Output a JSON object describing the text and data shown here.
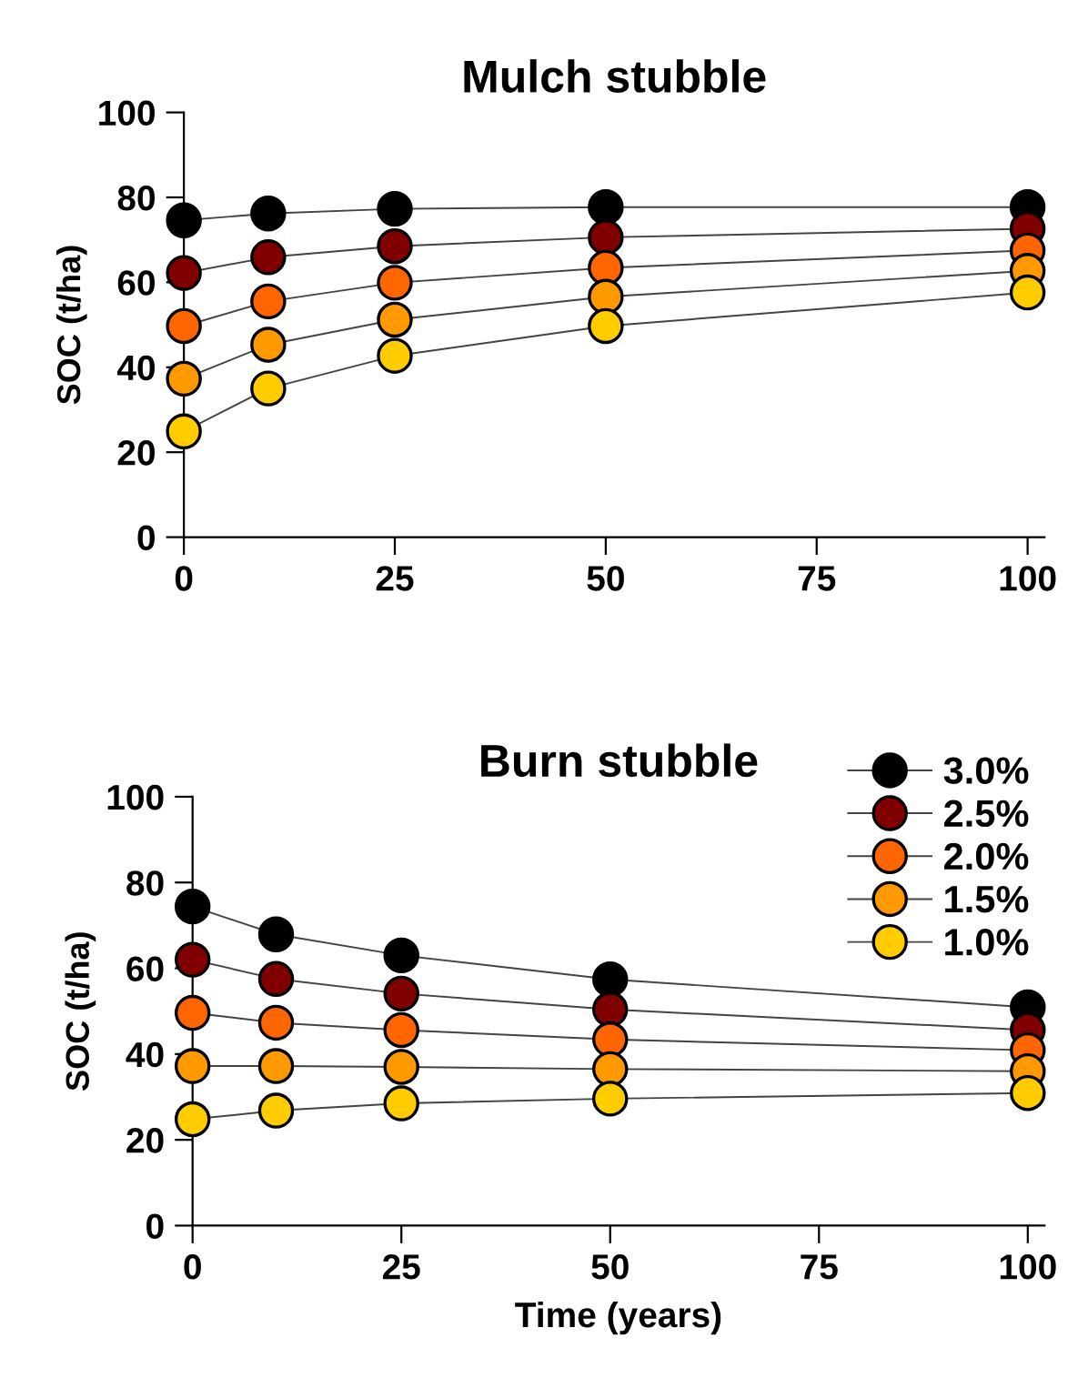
{
  "chart_data": [
    {
      "type": "line",
      "title": "Mulch stubble",
      "ylabel": "SOC (t/ha)",
      "x": [
        0,
        10,
        25,
        50,
        100
      ],
      "xlim": [
        0,
        102
      ],
      "ylim": [
        0,
        100
      ],
      "xticks": [
        0,
        25,
        50,
        75,
        100
      ],
      "yticks": [
        0,
        20,
        40,
        60,
        80,
        100
      ],
      "marker": "circle",
      "line_style": "solid",
      "grid": false,
      "legend": false,
      "series": [
        {
          "color": "#000000",
          "values": [
            74.6,
            76.2,
            77.3,
            77.7,
            77.7
          ]
        },
        {
          "color": "#800000",
          "values": [
            62.2,
            65.9,
            68.5,
            70.6,
            72.6
          ]
        },
        {
          "color": "#ff6600",
          "values": [
            49.7,
            55.5,
            59.9,
            63.4,
            67.5
          ]
        },
        {
          "color": "#ff9900",
          "values": [
            37.3,
            45.3,
            51.2,
            56.6,
            62.7
          ]
        },
        {
          "color": "#ffcc00",
          "values": [
            24.9,
            35.0,
            42.7,
            49.7,
            57.6
          ]
        }
      ]
    },
    {
      "type": "line",
      "title": "Burn stubble",
      "ylabel": "SOC (t/ha)",
      "xlabel": "Time (years)",
      "x": [
        0,
        10,
        25,
        50,
        100
      ],
      "xlim": [
        0,
        102
      ],
      "ylim": [
        0,
        100
      ],
      "xticks": [
        0,
        25,
        50,
        75,
        100
      ],
      "yticks": [
        0,
        20,
        40,
        60,
        80,
        100
      ],
      "marker": "circle",
      "line_style": "solid",
      "grid": false,
      "legend": "top right",
      "series": [
        {
          "name": "3.0%",
          "color": "#000000",
          "values": [
            74.4,
            67.9,
            63.0,
            57.4,
            50.9
          ]
        },
        {
          "name": "2.5%",
          "color": "#800000",
          "values": [
            62.0,
            57.5,
            54.1,
            50.4,
            45.6
          ]
        },
        {
          "name": "2.0%",
          "color": "#ff6600",
          "values": [
            49.6,
            47.3,
            45.6,
            43.4,
            40.9
          ]
        },
        {
          "name": "1.5%",
          "color": "#ff9900",
          "values": [
            37.2,
            37.2,
            37.0,
            36.5,
            36.0
          ]
        },
        {
          "name": "1.0%",
          "color": "#ffcc00",
          "values": [
            24.8,
            26.8,
            28.5,
            29.6,
            30.9
          ]
        }
      ]
    }
  ]
}
